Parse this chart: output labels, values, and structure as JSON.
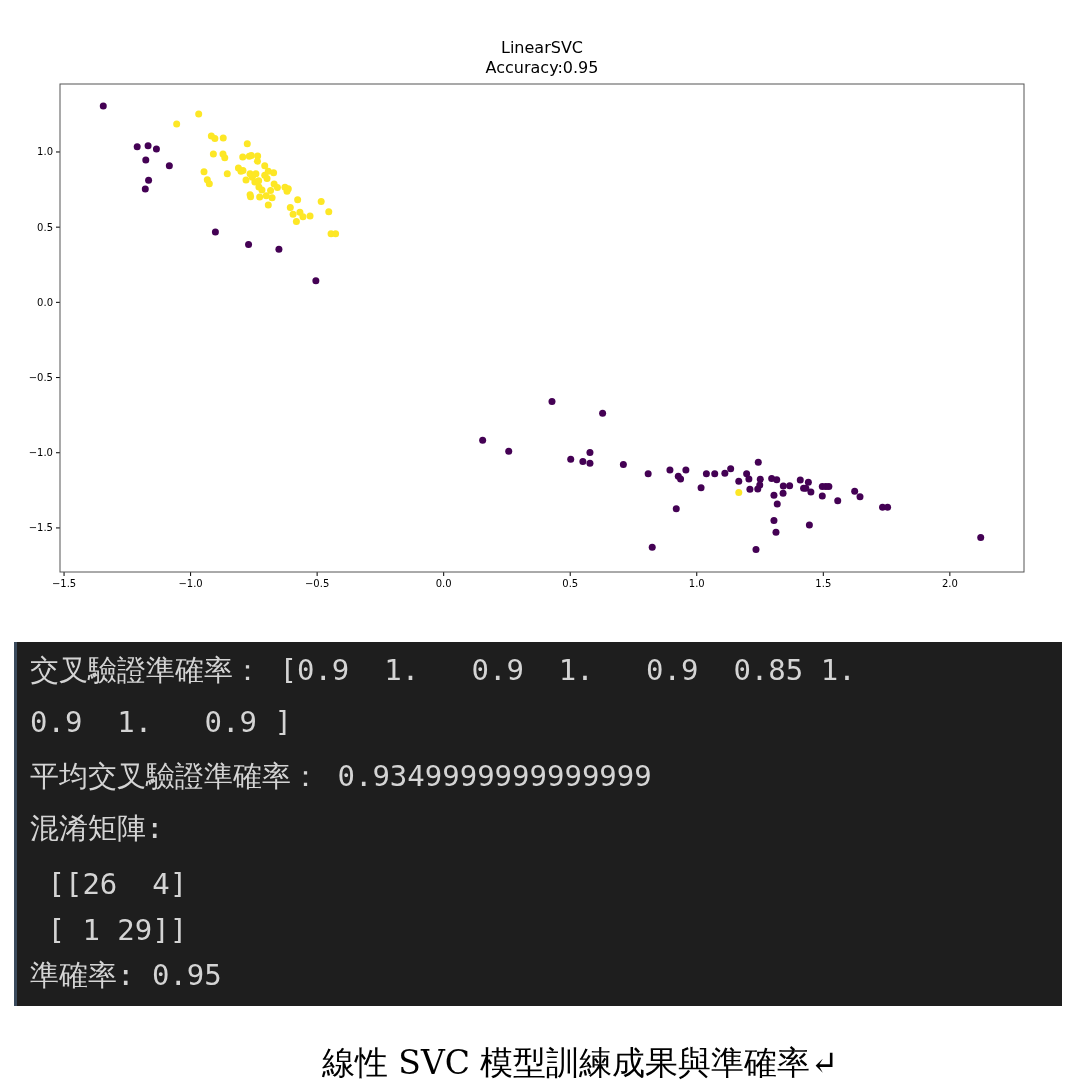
{
  "chart_data": [
    {
      "type": "scatter",
      "title": "LinearSVC\nAccuracy:0.95",
      "xlim": [
        -1.516,
        2.293
      ],
      "ylim": [
        -1.793,
        1.452
      ],
      "xticks": [
        {
          "value": -1.5,
          "label": "−1.5"
        },
        {
          "value": -1.0,
          "label": "−1.0"
        },
        {
          "value": -0.5,
          "label": "−0.5"
        },
        {
          "value": 0,
          "label": "0.0"
        },
        {
          "value": 0.5,
          "label": "0.5"
        },
        {
          "value": 1.0,
          "label": "1.0"
        },
        {
          "value": 1.5,
          "label": "1.5"
        },
        {
          "value": 2.0,
          "label": "2.0"
        }
      ],
      "yticks": [
        {
          "value": -1.5,
          "label": "−1.5"
        },
        {
          "value": -1.0,
          "label": "−1.0"
        },
        {
          "value": -0.5,
          "label": "−0.5"
        },
        {
          "value": 0,
          "label": "0.0"
        },
        {
          "value": 0.5,
          "label": "0.5"
        },
        {
          "value": 1.0,
          "label": "1.0"
        }
      ],
      "grid": false,
      "marker": "circle",
      "series": [
        {
          "color": "#440154",
          "x": [
            -1.345,
            -1.211,
            -1.168,
            -1.135,
            -1.177,
            -1.084,
            -1.166,
            -1.179,
            -0.902,
            -0.771,
            -0.651,
            -0.505,
            0.428,
            0.628,
            0.154,
            0.257,
            0.502,
            0.55,
            0.578,
            0.578,
            0.71,
            0.808,
            0.894,
            0.927,
            0.936,
            0.957,
            1.017,
            1.038,
            1.071,
            1.111,
            1.134,
            0.919,
            0.824,
            1.166,
            1.243,
            1.197,
            1.206,
            1.251,
            1.249,
            1.241,
            1.21,
            1.296,
            1.316,
            1.305,
            1.318,
            1.305,
            1.313,
            1.234,
            1.342,
            1.367,
            1.341,
            1.409,
            1.441,
            1.422,
            1.431,
            1.451,
            1.445,
            1.496,
            1.51,
            1.522,
            1.496,
            1.557,
            1.624,
            1.645,
            1.734,
            1.754,
            2.122
          ],
          "values": [
            1.306,
            1.035,
            1.042,
            1.02,
            0.947,
            0.909,
            0.812,
            0.754,
            0.468,
            0.384,
            0.353,
            0.144,
            -0.66,
            -0.738,
            -0.917,
            -0.99,
            -1.043,
            -1.059,
            -0.999,
            -1.07,
            -1.079,
            -1.139,
            -1.115,
            -1.156,
            -1.174,
            -1.115,
            -1.232,
            -1.139,
            -1.139,
            -1.136,
            -1.106,
            -1.372,
            -1.628,
            -1.19,
            -1.063,
            -1.139,
            -1.174,
            -1.176,
            -1.214,
            -1.241,
            -1.243,
            -1.172,
            -1.179,
            -1.283,
            -1.34,
            -1.451,
            -1.529,
            -1.644,
            -1.221,
            -1.219,
            -1.269,
            -1.181,
            -1.196,
            -1.236,
            -1.236,
            -1.261,
            -1.48,
            -1.225,
            -1.225,
            -1.225,
            -1.287,
            -1.32,
            -1.256,
            -1.292,
            -1.362,
            -1.362,
            -1.564
          ]
        },
        {
          "color": "#fde725",
          "x": [
            -0.968,
            -1.055,
            -0.918,
            -0.904,
            -0.871,
            -0.776,
            -0.91,
            -0.872,
            -0.865,
            -0.794,
            -0.768,
            -0.76,
            -0.735,
            -0.736,
            -0.707,
            -0.811,
            -0.801,
            -0.793,
            -0.947,
            -0.855,
            -0.765,
            -0.742,
            -0.693,
            -0.672,
            -0.756,
            -0.707,
            -0.698,
            -0.781,
            -0.934,
            -0.926,
            -0.746,
            -0.731,
            -0.67,
            -0.657,
            -0.73,
            -0.718,
            -0.627,
            -0.614,
            -0.619,
            -0.684,
            -0.765,
            -0.763,
            -0.727,
            -0.701,
            -0.678,
            -0.693,
            -0.577,
            -0.484,
            -0.606,
            -0.568,
            -0.595,
            -0.556,
            -0.528,
            -0.454,
            -0.582,
            -0.445,
            -0.427,
            1.166
          ],
          "values": [
            1.253,
            1.186,
            1.106,
            1.089,
            1.093,
            1.055,
            0.987,
            0.987,
            0.962,
            0.967,
            0.971,
            0.977,
            0.973,
            0.938,
            0.909,
            0.894,
            0.871,
            0.876,
            0.869,
            0.856,
            0.856,
            0.856,
            0.871,
            0.862,
            0.832,
            0.845,
            0.823,
            0.814,
            0.816,
            0.789,
            0.801,
            0.809,
            0.787,
            0.763,
            0.767,
            0.747,
            0.765,
            0.756,
            0.739,
            0.743,
            0.716,
            0.703,
            0.701,
            0.709,
            0.696,
            0.648,
            0.683,
            0.67,
            0.63,
            0.599,
            0.586,
            0.57,
            0.574,
            0.603,
            0.537,
            0.457,
            0.457,
            -1.265
          ]
        }
      ],
      "annotations": [
        "線性 SVC 模型訓練成果與準確率↵"
      ]
    },
    {
      "type": "other",
      "annotations": [
        "交叉驗證準確率： [0.9  1.   0.9  1.   0.9  0.85 1.",
        "0.9  1.   0.9 ]",
        "平均交叉驗證準確率： 0.9349999999999999",
        "混淆矩陣:",
        " [[26  4]",
        " [ 1 29]]",
        "準確率: 0.95"
      ]
    }
  ]
}
